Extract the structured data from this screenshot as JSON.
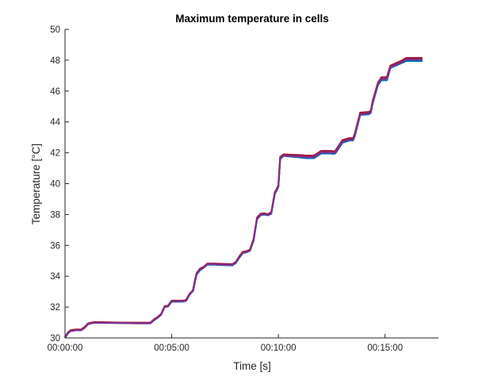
{
  "chart_data": {
    "type": "line",
    "title": "Maximum temperature in cells",
    "xlabel": "Time [s]",
    "ylabel": "Temperature [°C]",
    "ylim": [
      30,
      50
    ],
    "yticks": [
      "30",
      "32",
      "34",
      "36",
      "38",
      "40",
      "42",
      "44",
      "46",
      "48",
      "50"
    ],
    "xlim_seconds": [
      0,
      1050
    ],
    "xticks": [
      {
        "label": "00:00:00",
        "seconds": 0
      },
      {
        "label": "00:05:00",
        "seconds": 300
      },
      {
        "label": "00:10:00",
        "seconds": 600
      },
      {
        "label": "00:15:00",
        "seconds": 900
      }
    ],
    "grid": false,
    "legend": "none",
    "x_seconds": [
      0,
      8,
      16,
      30,
      45,
      55,
      65,
      80,
      100,
      150,
      200,
      240,
      250,
      260,
      270,
      275,
      280,
      290,
      300,
      320,
      330,
      340,
      350,
      360,
      365,
      370,
      380,
      390,
      400,
      420,
      440,
      470,
      480,
      490,
      500,
      510,
      520,
      530,
      540,
      550,
      560,
      570,
      580,
      590,
      595,
      600,
      605,
      615,
      660,
      680,
      700,
      720,
      745,
      755,
      760,
      780,
      800,
      810,
      815,
      830,
      855,
      860,
      865,
      880,
      890,
      900,
      905,
      915,
      935,
      945,
      960,
      970,
      975,
      990,
      1005
    ],
    "series": [
      {
        "color": "#0072bd",
        "values": [
          30.0,
          30.3,
          30.45,
          30.5,
          30.5,
          30.65,
          30.9,
          30.98,
          30.98,
          30.97,
          30.95,
          30.95,
          31.15,
          31.3,
          31.5,
          31.75,
          32.0,
          32.05,
          32.35,
          32.35,
          32.35,
          32.4,
          32.8,
          33.05,
          33.6,
          34.1,
          34.4,
          34.55,
          34.75,
          34.75,
          34.72,
          34.7,
          34.85,
          35.2,
          35.5,
          35.55,
          35.65,
          36.3,
          37.7,
          37.95,
          38.0,
          37.95,
          38.05,
          39.35,
          39.55,
          39.8,
          41.6,
          41.8,
          41.7,
          41.65,
          41.65,
          41.95,
          41.95,
          41.93,
          41.95,
          42.65,
          42.8,
          42.8,
          43.1,
          44.45,
          44.5,
          44.6,
          45.2,
          46.4,
          46.7,
          46.7,
          46.7,
          47.5,
          47.7,
          47.8,
          47.95,
          47.95,
          47.95,
          47.95,
          47.95
        ]
      },
      {
        "color": "#a2142f",
        "values": [
          30.05,
          30.35,
          30.5,
          30.55,
          30.55,
          30.7,
          30.95,
          31.02,
          31.02,
          31.0,
          30.99,
          30.99,
          31.2,
          31.35,
          31.55,
          31.8,
          32.05,
          32.1,
          32.42,
          32.42,
          32.42,
          32.45,
          32.85,
          33.1,
          33.7,
          34.2,
          34.5,
          34.6,
          34.82,
          34.82,
          34.8,
          34.78,
          34.92,
          35.28,
          35.58,
          35.62,
          35.72,
          36.4,
          37.8,
          38.05,
          38.08,
          38.02,
          38.15,
          39.45,
          39.65,
          39.9,
          41.72,
          41.9,
          41.85,
          41.82,
          41.82,
          42.12,
          42.12,
          42.1,
          42.12,
          42.82,
          42.95,
          42.95,
          43.25,
          44.6,
          44.65,
          44.75,
          45.35,
          46.55,
          46.9,
          46.9,
          46.9,
          47.65,
          47.85,
          47.95,
          48.15,
          48.15,
          48.15,
          48.15,
          48.15
        ]
      },
      {
        "color": "#7e2f8e",
        "values": [
          30.0,
          30.3,
          30.45,
          30.5,
          30.5,
          30.65,
          30.9,
          30.98,
          30.98,
          30.97,
          30.95,
          30.95,
          31.15,
          31.3,
          31.5,
          31.75,
          32.0,
          32.05,
          32.38,
          32.38,
          32.38,
          32.4,
          32.8,
          33.05,
          33.65,
          34.15,
          34.45,
          34.55,
          34.78,
          34.78,
          34.75,
          34.73,
          34.88,
          35.22,
          35.52,
          35.57,
          35.67,
          36.32,
          37.72,
          37.98,
          38.02,
          37.97,
          38.08,
          39.38,
          39.58,
          39.82,
          41.65,
          41.82,
          41.75,
          41.72,
          41.72,
          42.02,
          42.02,
          42.0,
          42.02,
          42.72,
          42.85,
          42.85,
          43.15,
          44.5,
          44.55,
          44.65,
          45.25,
          46.45,
          46.8,
          46.8,
          46.8,
          47.55,
          47.75,
          47.85,
          48.05,
          48.05,
          48.05,
          48.05,
          48.05
        ]
      }
    ]
  }
}
